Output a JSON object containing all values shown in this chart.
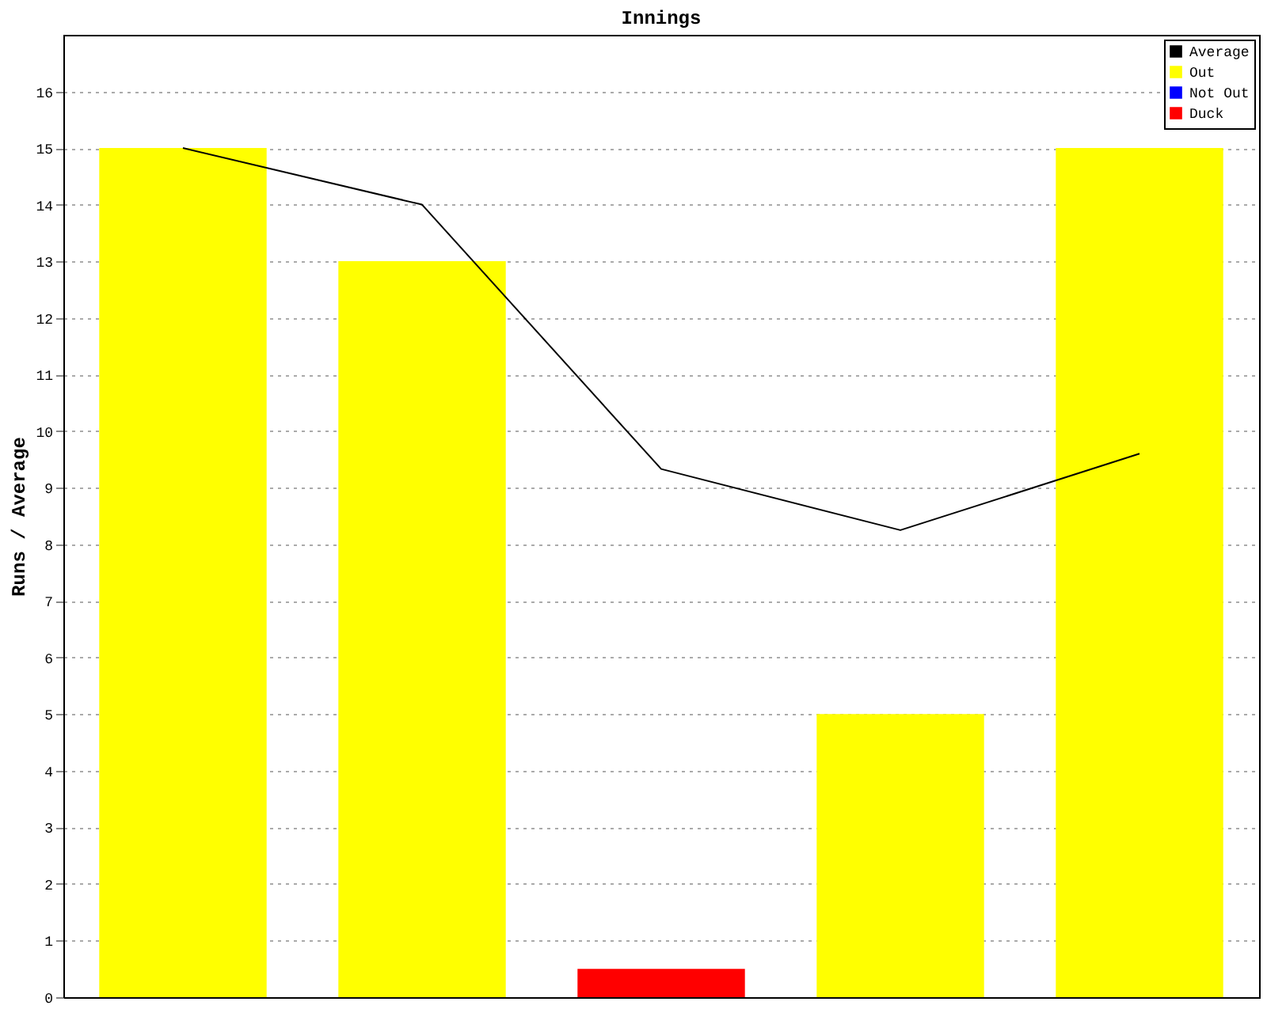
{
  "chart_data": {
    "type": "bar",
    "title": "Innings",
    "ylabel": "Runs / Average",
    "categories": [
      null,
      null,
      null,
      null,
      null
    ],
    "series": [
      {
        "name": "Average",
        "type": "line",
        "color": "#000000",
        "values": [
          15,
          14,
          9.33,
          8.25,
          9.6
        ]
      },
      {
        "name": "Out",
        "color": "#ffff00",
        "values": [
          15,
          13,
          null,
          5,
          15
        ]
      },
      {
        "name": "Not Out",
        "color": "#0000ff",
        "values": [
          null,
          null,
          null,
          null,
          null
        ]
      },
      {
        "name": "Duck",
        "color": "#ff0000",
        "values": [
          null,
          null,
          0.5,
          null,
          null
        ]
      }
    ],
    "ylim": [
      0,
      17
    ],
    "yticks": [
      0,
      1,
      2,
      3,
      4,
      5,
      6,
      7,
      8,
      9,
      10,
      11,
      12,
      13,
      14,
      15,
      16
    ],
    "grid": "y",
    "legend": "top right",
    "tick_labels": "y"
  }
}
